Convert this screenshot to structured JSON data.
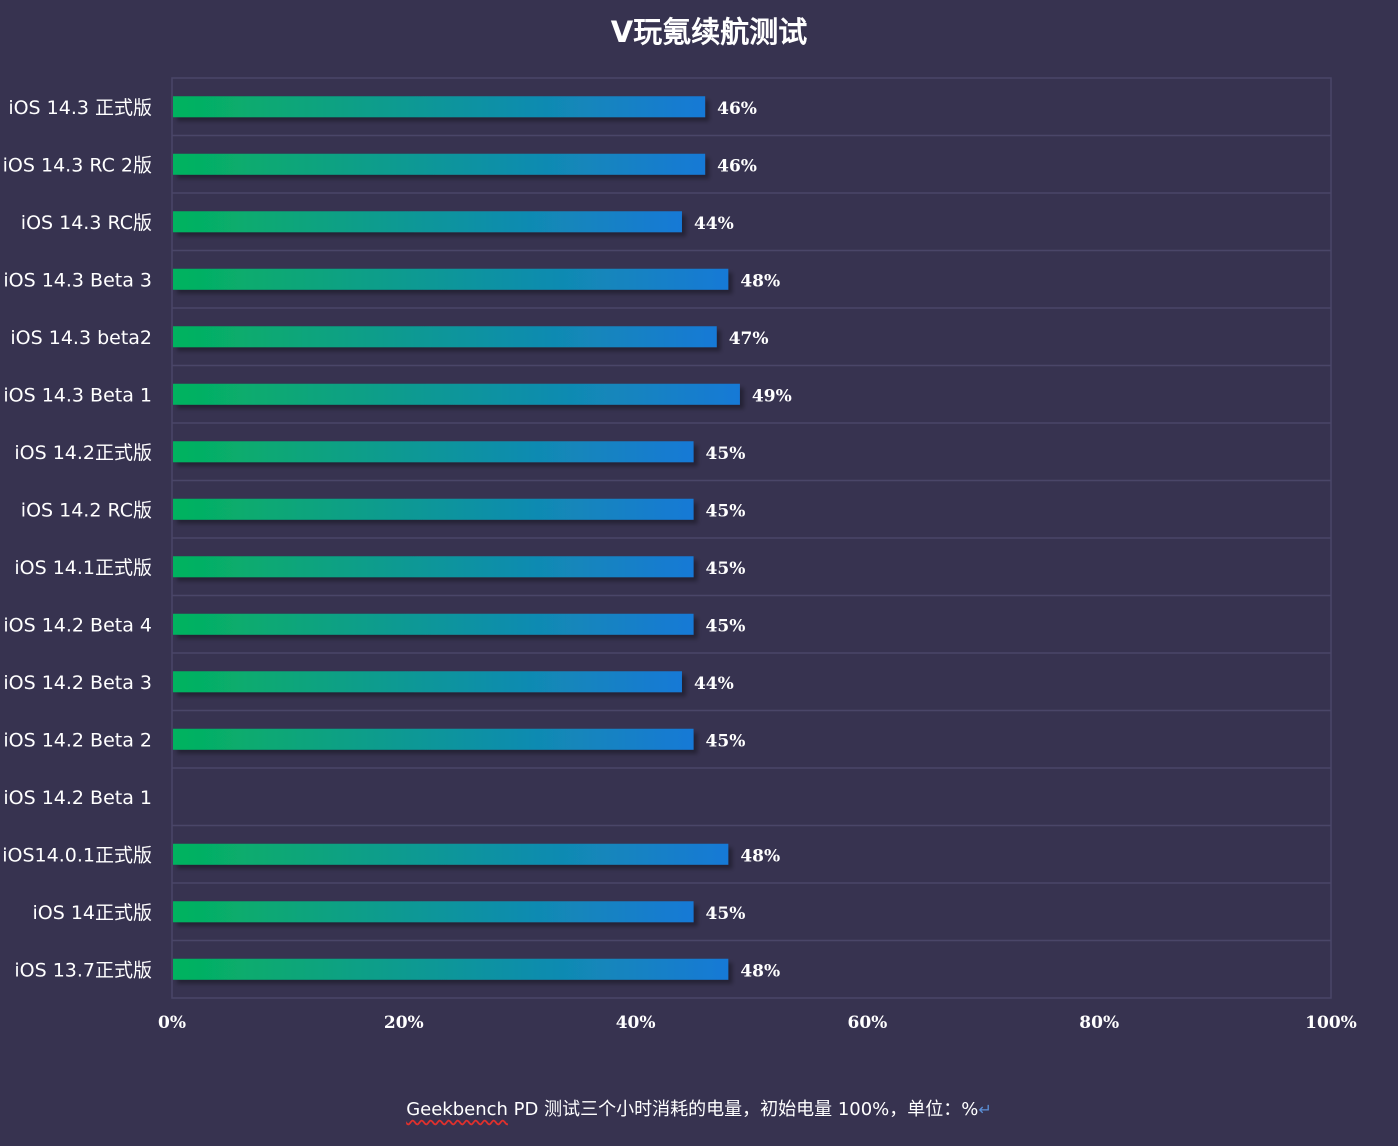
{
  "colors": {
    "background": "#373350",
    "grid": "#4a4668",
    "bar_start": "#05b35e",
    "bar_end": "#1679d6",
    "text": "#ffffff",
    "squiggle": "#e0302c",
    "return_mark": "#5b8fd6"
  },
  "chart_data": {
    "type": "bar",
    "orientation": "horizontal",
    "title": "V玩氪续航测试",
    "categories": [
      "iOS 14.3 正式版",
      "iOS 14.3 RC 2版",
      "iOS 14.3 RC版",
      "iOS 14.3 Beta 3",
      "iOS 14.3 beta2",
      "iOS 14.3 Beta 1",
      "iOS 14.2正式版",
      "iOS 14.2 RC版",
      "iOS 14.1正式版",
      "iOS 14.2 Beta 4",
      "iOS 14.2 Beta 3",
      "iOS 14.2 Beta 2",
      "iOS 14.2 Beta 1",
      "iOS14.0.1正式版",
      "iOS 14正式版",
      "iOS 13.7正式版"
    ],
    "values": [
      46,
      46,
      44,
      48,
      47,
      49,
      45,
      45,
      45,
      45,
      44,
      45,
      null,
      48,
      45,
      48
    ],
    "value_labels": [
      "46%",
      "46%",
      "44%",
      "48%",
      "47%",
      "49%",
      "45%",
      "45%",
      "45%",
      "45%",
      "44%",
      "45%",
      "",
      "48%",
      "45%",
      "48%"
    ],
    "xlim": [
      0,
      100
    ],
    "x_ticks": [
      0,
      20,
      40,
      60,
      80,
      100
    ],
    "x_tick_labels": [
      "0%",
      "20%",
      "40%",
      "60%",
      "80%",
      "100%"
    ],
    "grid": true
  },
  "footnote": {
    "word": "Geekbench",
    "rest": " PD 测试三个小时消耗的电量，初始电量 100%，单位：%",
    "return_mark": "↵"
  }
}
